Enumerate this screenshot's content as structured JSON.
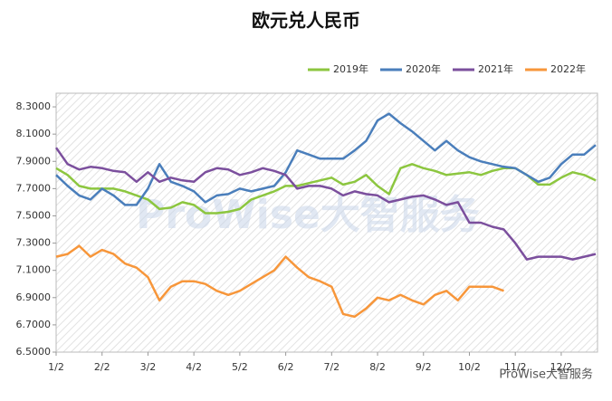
{
  "chart_data": {
    "type": "line",
    "title": "欧元兑人民币",
    "watermark": "ProWise大智服务",
    "footer": "ProWise大智服务",
    "categories": [
      "1/2",
      null,
      null,
      null,
      "2/2",
      null,
      null,
      null,
      "3/2",
      null,
      null,
      null,
      "4/2",
      null,
      null,
      null,
      "5/2",
      null,
      null,
      null,
      "6/2",
      null,
      null,
      null,
      "7/2",
      null,
      null,
      null,
      "8/2",
      null,
      null,
      null,
      "9/2",
      null,
      null,
      null,
      "10/2",
      null,
      null,
      null,
      "11/2",
      null,
      null,
      null,
      "12/2",
      null,
      null,
      null
    ],
    "ylim": [
      6.5,
      8.4
    ],
    "yticks": [
      {
        "value": 6.5,
        "label": "6.5000"
      },
      {
        "value": 6.7,
        "label": "6.7000"
      },
      {
        "value": 6.9,
        "label": "6.9000"
      },
      {
        "value": 7.1,
        "label": "7.1000"
      },
      {
        "value": 7.3,
        "label": "7.3000"
      },
      {
        "value": 7.5,
        "label": "7.5000"
      },
      {
        "value": 7.7,
        "label": "7.7000"
      },
      {
        "value": 7.9,
        "label": "7.9000"
      },
      {
        "value": 8.1,
        "label": "8.1000"
      },
      {
        "value": 8.3,
        "label": "8.3000"
      }
    ],
    "legend": "top-right",
    "series": [
      {
        "name": "2019年",
        "color": "#8cc63f",
        "values": [
          7.85,
          7.8,
          7.72,
          7.7,
          7.7,
          7.7,
          7.68,
          7.65,
          7.62,
          7.55,
          7.56,
          7.6,
          7.58,
          7.52,
          7.52,
          7.53,
          7.55,
          7.62,
          7.65,
          7.68,
          7.72,
          7.72,
          7.74,
          7.76,
          7.78,
          7.73,
          7.75,
          7.8,
          7.72,
          7.66,
          7.85,
          7.88,
          7.85,
          7.83,
          7.8,
          7.81,
          7.82,
          7.8,
          7.83,
          7.85,
          7.85,
          7.8,
          7.73,
          7.73,
          7.78,
          7.82,
          7.8,
          7.76
        ]
      },
      {
        "name": "2020年",
        "color": "#4a7ebb",
        "values": [
          7.8,
          7.72,
          7.65,
          7.62,
          7.7,
          7.65,
          7.58,
          7.58,
          7.7,
          7.88,
          7.75,
          7.72,
          7.68,
          7.6,
          7.65,
          7.66,
          7.7,
          7.68,
          7.7,
          7.72,
          7.82,
          7.98,
          7.95,
          7.92,
          7.92,
          7.92,
          7.98,
          8.05,
          8.2,
          8.25,
          8.18,
          8.12,
          8.05,
          7.98,
          8.05,
          7.98,
          7.93,
          7.9,
          7.88,
          7.86,
          7.85,
          7.8,
          7.75,
          7.78,
          7.88,
          7.95,
          7.95,
          8.02
        ]
      },
      {
        "name": "2021年",
        "color": "#7b4f9d",
        "values": [
          8.0,
          7.88,
          7.84,
          7.86,
          7.85,
          7.83,
          7.82,
          7.75,
          7.82,
          7.75,
          7.78,
          7.76,
          7.75,
          7.82,
          7.85,
          7.84,
          7.8,
          7.82,
          7.85,
          7.83,
          7.8,
          7.7,
          7.72,
          7.72,
          7.7,
          7.65,
          7.68,
          7.66,
          7.65,
          7.6,
          7.62,
          7.64,
          7.65,
          7.62,
          7.58,
          7.6,
          7.45,
          7.45,
          7.42,
          7.4,
          7.3,
          7.18,
          7.2,
          7.2,
          7.2,
          7.18,
          7.2,
          7.22
        ]
      },
      {
        "name": "2022年",
        "color": "#f7963a",
        "values": [
          7.2,
          7.22,
          7.28,
          7.2,
          7.25,
          7.22,
          7.15,
          7.12,
          7.05,
          6.88,
          6.98,
          7.02,
          7.02,
          7.0,
          6.95,
          6.92,
          6.95,
          7.0,
          7.05,
          7.1,
          7.2,
          7.12,
          7.05,
          7.02,
          6.98,
          6.78,
          6.76,
          6.82,
          6.9,
          6.88,
          6.92,
          6.88,
          6.85,
          6.92,
          6.95,
          6.88,
          6.98,
          6.98,
          6.98,
          6.95,
          null,
          null,
          null,
          null,
          null,
          null,
          null,
          null
        ]
      }
    ]
  }
}
